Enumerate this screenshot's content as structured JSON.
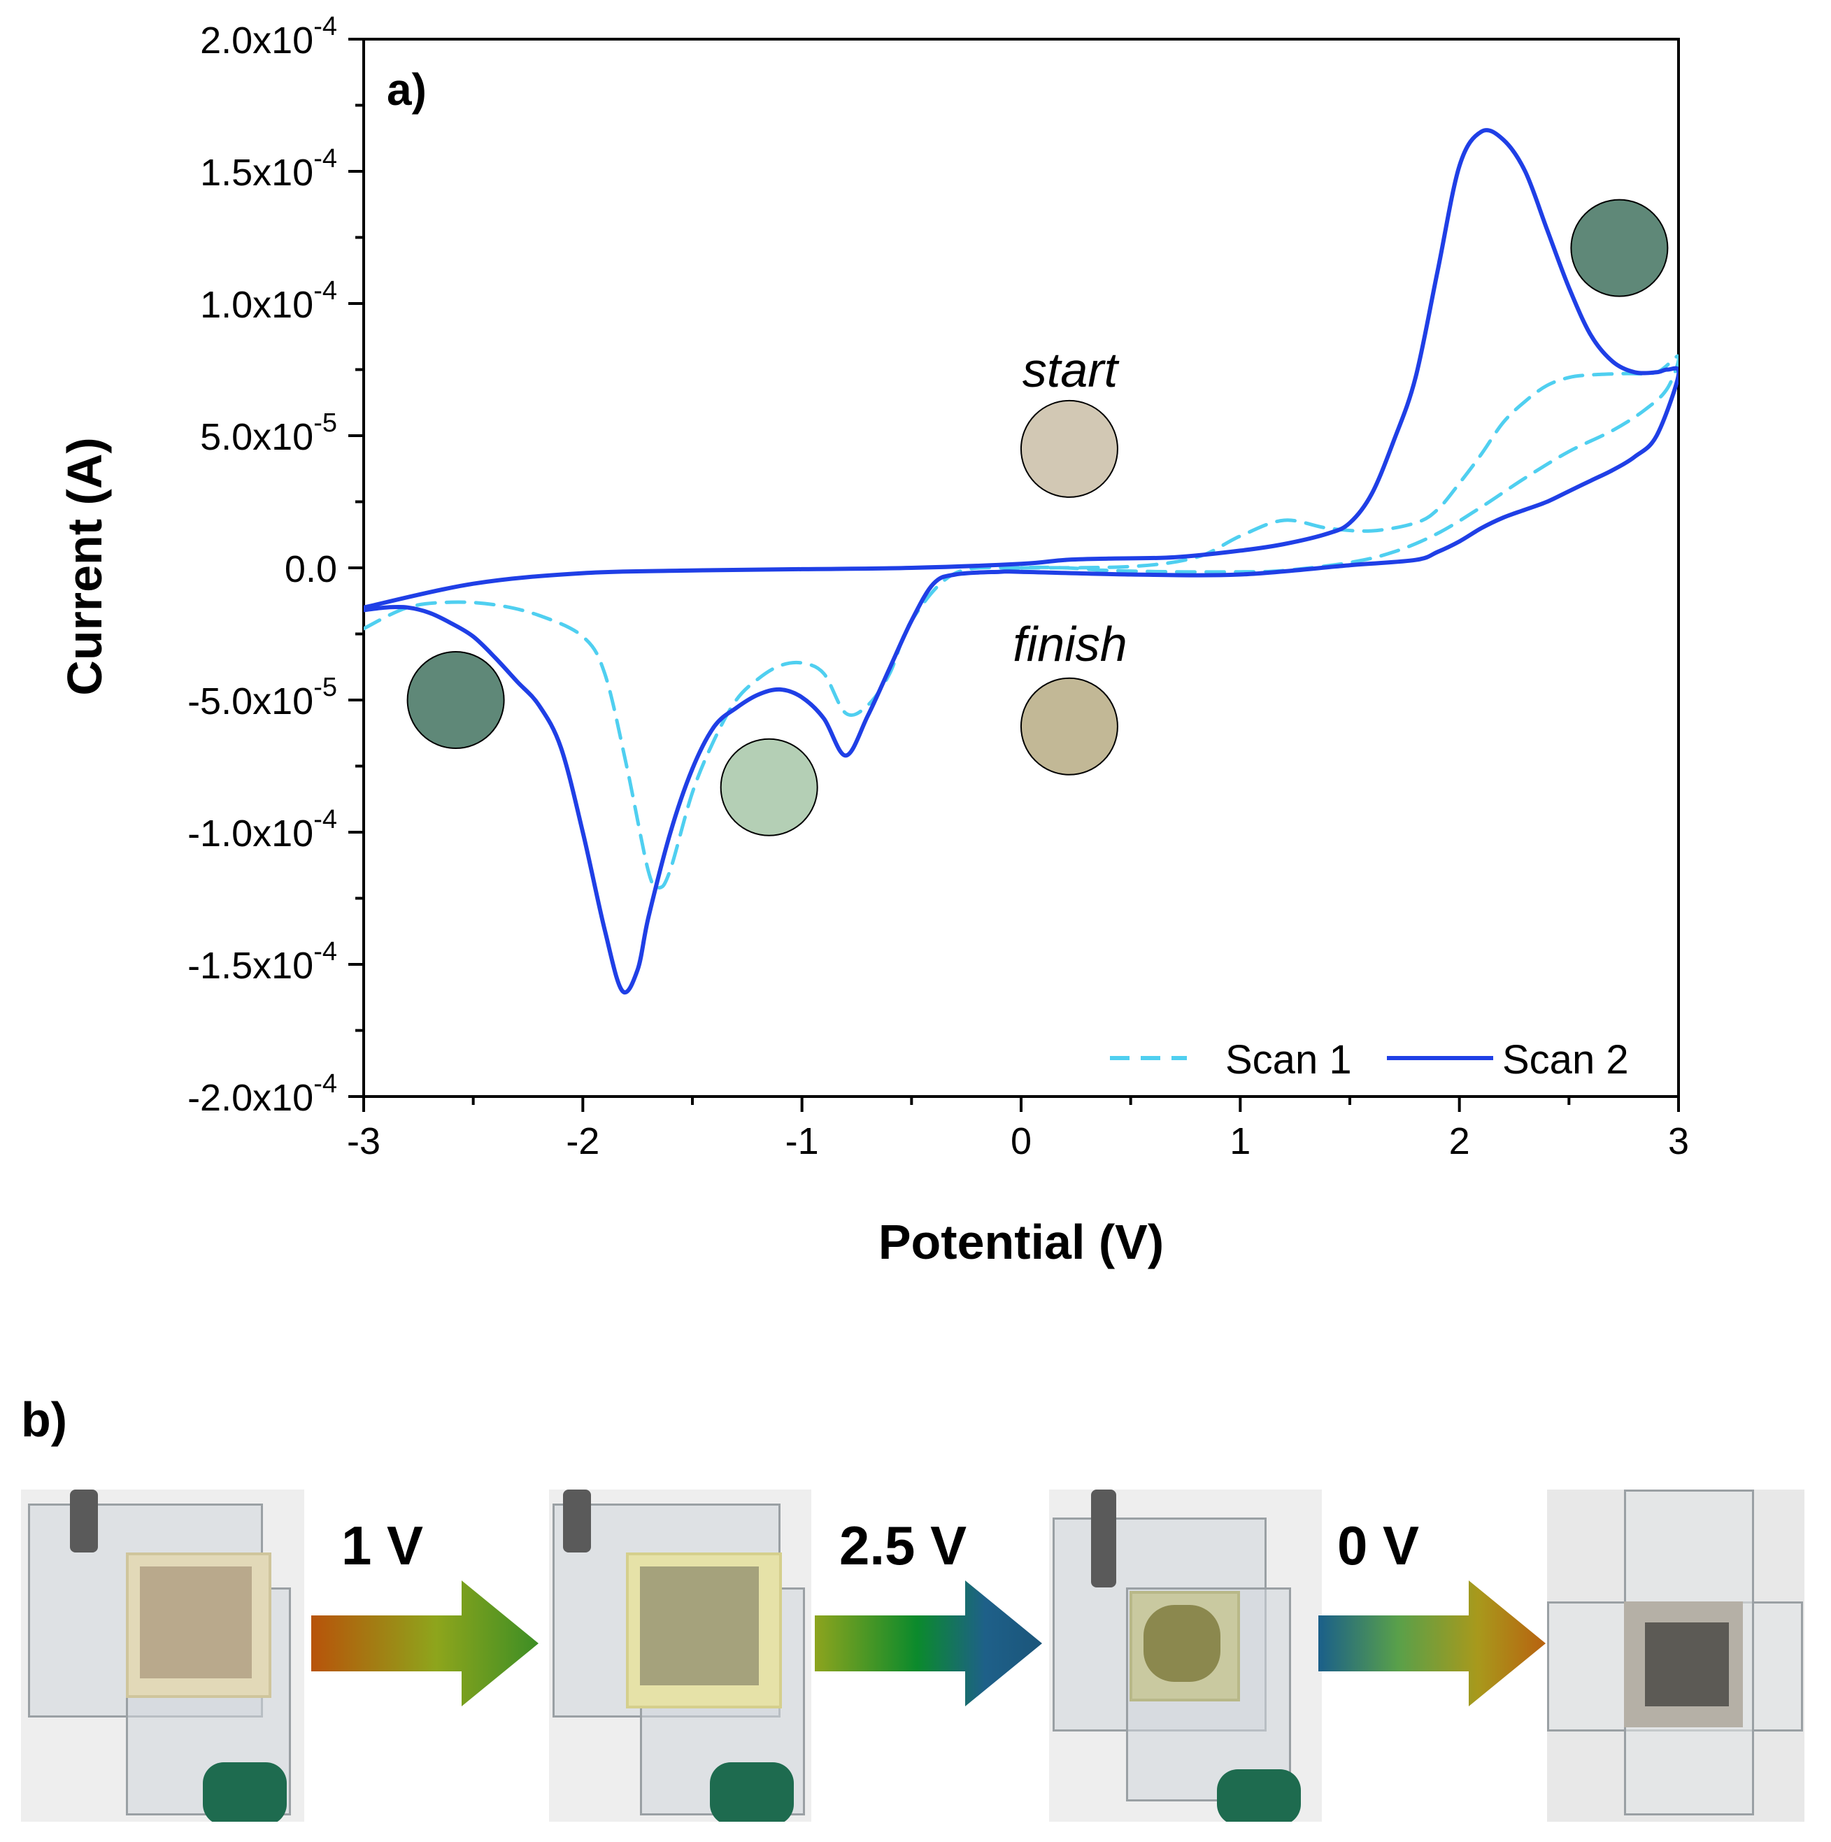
{
  "panel_a": {
    "label": "a)",
    "annotations": {
      "start": "start",
      "finish": "finish"
    },
    "colors": {
      "scan1": "#4fcff0",
      "scan2": "#1f3fe6",
      "dot_dark_left": "#5f8878",
      "dot_light_green": "#b4cfb5",
      "dot_start": "#d2c8b4",
      "dot_finish": "#c2b896",
      "dot_dark_right": "#5f8878"
    }
  },
  "chart_data": {
    "type": "line",
    "title": "",
    "xlabel": "Potential (V)",
    "ylabel": "Current (A)",
    "xlim": [
      -3,
      3
    ],
    "ylim": [
      -0.0002,
      0.0002
    ],
    "x_ticks": [
      -3,
      -2,
      -1,
      0,
      1,
      2,
      3
    ],
    "x_tick_labels": [
      "-3",
      "-2",
      "-1",
      "0",
      "1",
      "2",
      "3"
    ],
    "y_ticks": [
      0.0002,
      0.00015,
      0.0001,
      5e-05,
      0,
      -5e-05,
      -0.0001,
      -0.00015,
      -0.0002
    ],
    "y_tick_labels": [
      {
        "mantissa": "2.0x10",
        "exp": "-4"
      },
      {
        "mantissa": "1.5x10",
        "exp": "-4"
      },
      {
        "mantissa": "1.0x10",
        "exp": "-4"
      },
      {
        "mantissa": "5.0x10",
        "exp": "-5"
      },
      {
        "mantissa": "0.0",
        "exp": ""
      },
      {
        "mantissa": "-5.0x10",
        "exp": "-5"
      },
      {
        "mantissa": "-1.0x10",
        "exp": "-4"
      },
      {
        "mantissa": "-1.5x10",
        "exp": "-4"
      },
      {
        "mantissa": "-2.0x10",
        "exp": "-4"
      }
    ],
    "legend": {
      "position": "bottom-right",
      "entries": [
        "Scan 1",
        "Scan 2"
      ]
    },
    "series": [
      {
        "name": "Scan 1",
        "style": "dashed",
        "points": [
          [
            0,
            0.0
          ],
          [
            0.5,
            5e-07
          ],
          [
            0.8,
            4e-06
          ],
          [
            1.0,
            1.2e-05
          ],
          [
            1.2,
            1.8e-05
          ],
          [
            1.4,
            1.5e-05
          ],
          [
            1.6,
            1.4e-05
          ],
          [
            1.8,
            1.7e-05
          ],
          [
            1.9,
            2.2e-05
          ],
          [
            2.0,
            3.2e-05
          ],
          [
            2.1,
            4.3e-05
          ],
          [
            2.2,
            5.5e-05
          ],
          [
            2.3,
            6.3e-05
          ],
          [
            2.4,
            6.9e-05
          ],
          [
            2.5,
            7.2e-05
          ],
          [
            2.6,
            7.3e-05
          ],
          [
            2.75,
            7.35e-05
          ],
          [
            2.9,
            7.4e-05
          ],
          [
            3.0,
            8e-05
          ],
          [
            2.95,
            6.8e-05
          ],
          [
            2.85,
            6e-05
          ],
          [
            2.7,
            5.2e-05
          ],
          [
            2.5,
            4.4e-05
          ],
          [
            2.3,
            3.4e-05
          ],
          [
            2.1,
            2.3e-05
          ],
          [
            1.9,
            1.3e-05
          ],
          [
            1.7,
            6e-06
          ],
          [
            1.5,
            2e-06
          ],
          [
            1.2,
            -1e-06
          ],
          [
            1.0,
            -1.5e-06
          ],
          [
            0.7,
            -1.5e-06
          ],
          [
            0.4,
            -1e-06
          ],
          [
            0.2,
            0.0
          ],
          [
            0.0,
            0.0
          ],
          [
            -0.3,
            -2e-06
          ],
          [
            -0.5,
            -2e-05
          ],
          [
            -0.6,
            -4e-05
          ],
          [
            -0.7,
            -5.2e-05
          ],
          [
            -0.8,
            -5.5e-05
          ],
          [
            -0.9,
            -4e-05
          ],
          [
            -1.0,
            -3.6e-05
          ],
          [
            -1.1,
            -3.7e-05
          ],
          [
            -1.2,
            -4.2e-05
          ],
          [
            -1.3,
            -5e-05
          ],
          [
            -1.4,
            -6.5e-05
          ],
          [
            -1.5,
            -8.5e-05
          ],
          [
            -1.6,
            -0.000114
          ],
          [
            -1.65,
            -0.000121
          ],
          [
            -1.7,
            -0.000115
          ],
          [
            -1.8,
            -7.5e-05
          ],
          [
            -1.9,
            -4e-05
          ],
          [
            -2.0,
            -2.6e-05
          ],
          [
            -2.2,
            -1.8e-05
          ],
          [
            -2.4,
            -1.4e-05
          ],
          [
            -2.6,
            -1.3e-05
          ],
          [
            -2.8,
            -1.5e-05
          ],
          [
            -3.0,
            -2.3e-05
          ]
        ]
      },
      {
        "name": "Scan 2",
        "style": "solid",
        "points": [
          [
            -3.0,
            -1.6e-05
          ],
          [
            -2.9,
            -1.5e-05
          ],
          [
            -2.8,
            -1.5e-05
          ],
          [
            -2.7,
            -1.7e-05
          ],
          [
            -2.6,
            -2.1e-05
          ],
          [
            -2.5,
            -2.6e-05
          ],
          [
            -2.4,
            -3.4e-05
          ],
          [
            -2.3,
            -4.3e-05
          ],
          [
            -2.2,
            -5.2e-05
          ],
          [
            -2.1,
            -6.8e-05
          ],
          [
            -2.0,
            -0.0001
          ],
          [
            -1.9,
            -0.000137
          ],
          [
            -1.82,
            -0.00016
          ],
          [
            -1.75,
            -0.000152
          ],
          [
            -1.7,
            -0.000132
          ],
          [
            -1.6,
            -0.0001
          ],
          [
            -1.5,
            -7.6e-05
          ],
          [
            -1.4,
            -6e-05
          ],
          [
            -1.3,
            -5.3e-05
          ],
          [
            -1.2,
            -4.8e-05
          ],
          [
            -1.1,
            -4.6e-05
          ],
          [
            -1.0,
            -4.9e-05
          ],
          [
            -0.9,
            -5.7e-05
          ],
          [
            -0.8,
            -7.1e-05
          ],
          [
            -0.7,
            -5.6e-05
          ],
          [
            -0.6,
            -3.8e-05
          ],
          [
            -0.5,
            -2e-05
          ],
          [
            -0.4,
            -6e-06
          ],
          [
            -0.3,
            -2.5e-06
          ],
          [
            -0.1,
            -1.5e-06
          ],
          [
            0.0,
            -1.5e-06
          ],
          [
            0.5,
            -2.5e-06
          ],
          [
            1.0,
            -2.5e-06
          ],
          [
            1.5,
            1e-06
          ],
          [
            1.8,
            3e-06
          ],
          [
            1.9,
            6e-06
          ],
          [
            2.0,
            1e-05
          ],
          [
            2.1,
            1.5e-05
          ],
          [
            2.2,
            1.9e-05
          ],
          [
            2.3,
            2.2e-05
          ],
          [
            2.4,
            2.5e-05
          ],
          [
            2.5,
            2.9e-05
          ],
          [
            2.6,
            3.3e-05
          ],
          [
            2.7,
            3.7e-05
          ],
          [
            2.8,
            4.2e-05
          ],
          [
            2.9,
            5e-05
          ],
          [
            3.0,
            7.3e-05
          ],
          [
            2.95,
            7.5e-05
          ],
          [
            2.9,
            7.4e-05
          ],
          [
            2.8,
            7.4e-05
          ],
          [
            2.7,
            7.8e-05
          ],
          [
            2.6,
            8.8e-05
          ],
          [
            2.5,
            0.000106
          ],
          [
            2.4,
            0.000128
          ],
          [
            2.3,
            0.00015
          ],
          [
            2.2,
            0.000162
          ],
          [
            2.1,
            0.000165
          ],
          [
            2.0,
            0.000152
          ],
          [
            1.9,
            0.000112
          ],
          [
            1.8,
            7.2e-05
          ],
          [
            1.7,
            4.8e-05
          ],
          [
            1.6,
            2.8e-05
          ],
          [
            1.5,
            1.7e-05
          ],
          [
            1.4,
            1.3e-05
          ],
          [
            1.2,
            9e-06
          ],
          [
            1.0,
            6.5e-06
          ],
          [
            0.7,
            4e-06
          ],
          [
            0.4,
            3.5e-06
          ],
          [
            0.2,
            3e-06
          ],
          [
            0.0,
            1.5e-06
          ],
          [
            -0.5,
            0.0
          ],
          [
            -1.0,
            -5e-07
          ],
          [
            -1.5,
            -1e-06
          ],
          [
            -2.0,
            -2e-06
          ],
          [
            -2.5,
            -6e-06
          ],
          [
            -3.0,
            -1.5e-05
          ]
        ]
      }
    ]
  },
  "panel_b": {
    "label": "b)",
    "arrow_labels": [
      "1 V",
      "2.5 V",
      "0 V"
    ]
  }
}
